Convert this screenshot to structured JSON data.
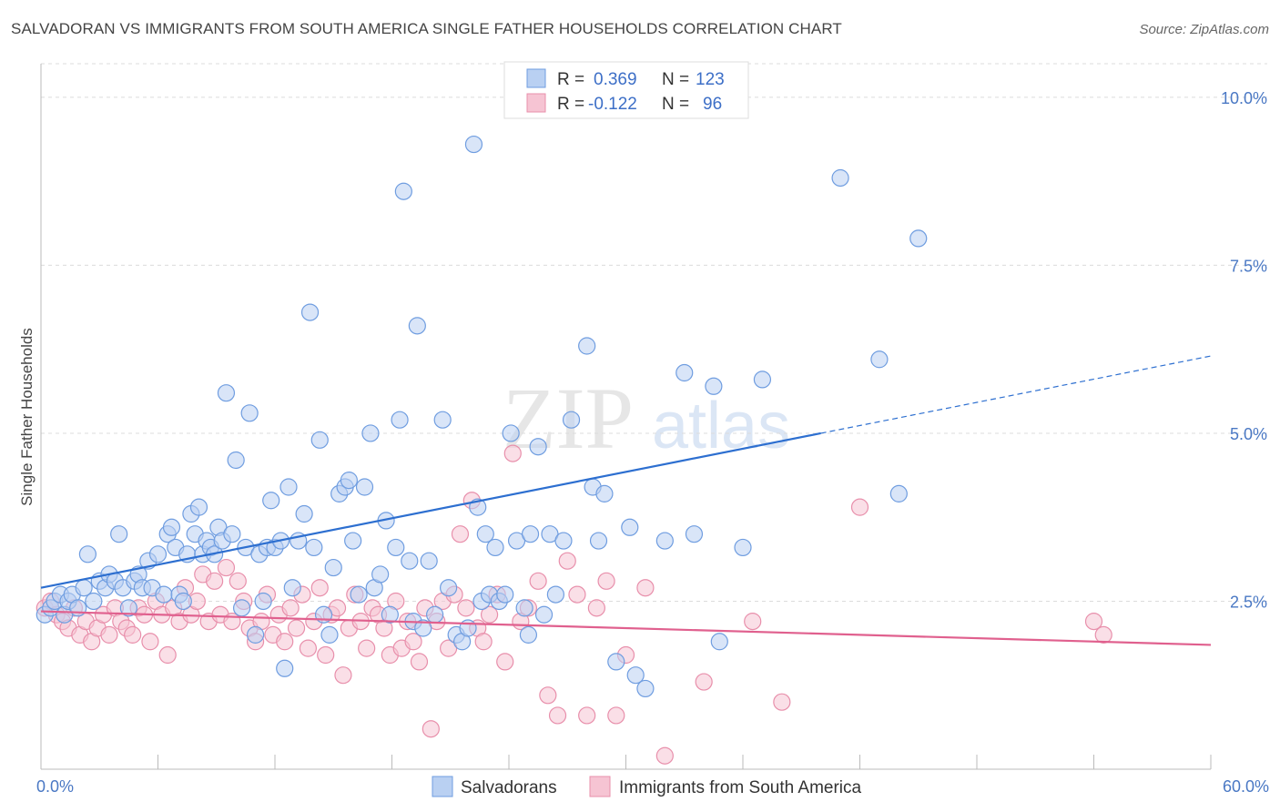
{
  "header": {
    "title": "SALVADORAN VS IMMIGRANTS FROM SOUTH AMERICA SINGLE FATHER HOUSEHOLDS CORRELATION CHART",
    "source": "Source: ZipAtlas.com"
  },
  "watermark": {
    "zip": "ZIP",
    "atlas": "atlas"
  },
  "chart_data": {
    "type": "scatter",
    "title": "SALVADORAN VS IMMIGRANTS FROM SOUTH AMERICA SINGLE FATHER HOUSEHOLDS CORRELATION CHART",
    "xlabel": "",
    "ylabel": "Single Father Households",
    "xlim": [
      0,
      60
    ],
    "ylim": [
      0,
      10.5
    ],
    "x_ticks": [
      {
        "value": 0,
        "label": "0.0%"
      },
      {
        "value": 60,
        "label": "60.0%"
      }
    ],
    "y_ticks": [
      {
        "value": 2.5,
        "label": "2.5%"
      },
      {
        "value": 5.0,
        "label": "5.0%"
      },
      {
        "value": 7.5,
        "label": "7.5%"
      },
      {
        "value": 10.0,
        "label": "10.0%"
      }
    ],
    "legend": {
      "position": "top-center",
      "entries": [
        {
          "r_label": "R =",
          "r_value": "0.369",
          "n_label": "N =",
          "n_value": "123"
        },
        {
          "r_label": "R =",
          "r_value": "-0.122",
          "n_label": "N =",
          "n_value": "96"
        }
      ]
    },
    "series": [
      {
        "name": "Salvadorans",
        "color": "#6f9de0",
        "fill": "#b9d0f2",
        "trend": {
          "x0": 0,
          "y0": 2.7,
          "x1": 40,
          "y1": 5.0,
          "dashed_to_x": 60,
          "dashed_to_y": 6.15,
          "color": "#2d6fd0"
        },
        "points": [
          [
            0.2,
            2.3
          ],
          [
            0.5,
            2.4
          ],
          [
            0.7,
            2.5
          ],
          [
            1.0,
            2.6
          ],
          [
            1.2,
            2.3
          ],
          [
            1.4,
            2.5
          ],
          [
            1.6,
            2.6
          ],
          [
            1.9,
            2.4
          ],
          [
            2.2,
            2.7
          ],
          [
            2.4,
            3.2
          ],
          [
            2.7,
            2.5
          ],
          [
            3.0,
            2.8
          ],
          [
            3.3,
            2.7
          ],
          [
            3.5,
            2.9
          ],
          [
            3.8,
            2.8
          ],
          [
            4.0,
            3.5
          ],
          [
            4.2,
            2.7
          ],
          [
            4.5,
            2.4
          ],
          [
            4.8,
            2.8
          ],
          [
            5.0,
            2.9
          ],
          [
            5.2,
            2.7
          ],
          [
            5.5,
            3.1
          ],
          [
            5.7,
            2.7
          ],
          [
            6.0,
            3.2
          ],
          [
            6.3,
            2.6
          ],
          [
            6.5,
            3.5
          ],
          [
            6.7,
            3.6
          ],
          [
            6.9,
            3.3
          ],
          [
            7.1,
            2.6
          ],
          [
            7.3,
            2.5
          ],
          [
            7.5,
            3.2
          ],
          [
            7.7,
            3.8
          ],
          [
            7.9,
            3.5
          ],
          [
            8.1,
            3.9
          ],
          [
            8.3,
            3.2
          ],
          [
            8.5,
            3.4
          ],
          [
            8.7,
            3.3
          ],
          [
            8.9,
            3.2
          ],
          [
            9.1,
            3.6
          ],
          [
            9.3,
            3.4
          ],
          [
            9.5,
            5.6
          ],
          [
            9.8,
            3.5
          ],
          [
            10.0,
            4.6
          ],
          [
            10.3,
            2.4
          ],
          [
            10.5,
            3.3
          ],
          [
            10.7,
            5.3
          ],
          [
            11.0,
            2.0
          ],
          [
            11.2,
            3.2
          ],
          [
            11.4,
            2.5
          ],
          [
            11.6,
            3.3
          ],
          [
            11.8,
            4.0
          ],
          [
            12.0,
            3.3
          ],
          [
            12.3,
            3.4
          ],
          [
            12.5,
            1.5
          ],
          [
            12.7,
            4.2
          ],
          [
            12.9,
            2.7
          ],
          [
            13.2,
            3.4
          ],
          [
            13.5,
            3.8
          ],
          [
            13.8,
            6.8
          ],
          [
            14.0,
            3.3
          ],
          [
            14.3,
            4.9
          ],
          [
            14.5,
            2.3
          ],
          [
            14.8,
            2.0
          ],
          [
            15.0,
            3.0
          ],
          [
            15.3,
            4.1
          ],
          [
            15.6,
            4.2
          ],
          [
            15.8,
            4.3
          ],
          [
            16.0,
            3.4
          ],
          [
            16.3,
            2.6
          ],
          [
            16.6,
            4.2
          ],
          [
            16.9,
            5.0
          ],
          [
            17.1,
            2.7
          ],
          [
            17.4,
            2.9
          ],
          [
            17.7,
            3.7
          ],
          [
            17.9,
            2.3
          ],
          [
            18.2,
            3.3
          ],
          [
            18.4,
            5.2
          ],
          [
            18.6,
            8.6
          ],
          [
            18.9,
            3.1
          ],
          [
            19.1,
            2.2
          ],
          [
            19.3,
            6.6
          ],
          [
            19.6,
            2.1
          ],
          [
            19.9,
            3.1
          ],
          [
            20.2,
            2.3
          ],
          [
            20.6,
            5.2
          ],
          [
            20.9,
            2.7
          ],
          [
            21.3,
            2.0
          ],
          [
            21.6,
            1.9
          ],
          [
            21.9,
            2.1
          ],
          [
            22.2,
            9.3
          ],
          [
            22.4,
            3.9
          ],
          [
            22.6,
            2.5
          ],
          [
            22.8,
            3.5
          ],
          [
            23.0,
            2.6
          ],
          [
            23.3,
            3.3
          ],
          [
            23.5,
            2.5
          ],
          [
            23.8,
            2.6
          ],
          [
            24.1,
            5.0
          ],
          [
            24.4,
            3.4
          ],
          [
            24.8,
            2.4
          ],
          [
            25.1,
            3.5
          ],
          [
            25.5,
            4.8
          ],
          [
            25.8,
            2.3
          ],
          [
            26.1,
            3.5
          ],
          [
            26.4,
            2.6
          ],
          [
            26.8,
            3.4
          ],
          [
            27.2,
            5.2
          ],
          [
            28.0,
            6.3
          ],
          [
            28.3,
            4.2
          ],
          [
            28.6,
            3.4
          ],
          [
            28.9,
            4.1
          ],
          [
            29.5,
            1.6
          ],
          [
            30.2,
            3.6
          ],
          [
            30.5,
            1.4
          ],
          [
            31.0,
            1.2
          ],
          [
            32.0,
            3.4
          ],
          [
            33.0,
            5.9
          ],
          [
            33.5,
            3.5
          ],
          [
            34.5,
            5.7
          ],
          [
            36.0,
            3.3
          ],
          [
            37.0,
            5.8
          ],
          [
            41.0,
            8.8
          ],
          [
            43.0,
            6.1
          ],
          [
            44.0,
            4.1
          ],
          [
            45.0,
            7.9
          ],
          [
            34.8,
            1.9
          ],
          [
            25.0,
            2.0
          ]
        ]
      },
      {
        "name": "Immigrants from South America",
        "color": "#e88fab",
        "fill": "#f6c4d3",
        "trend": {
          "x0": 0,
          "y0": 2.35,
          "x1": 60,
          "y1": 1.85,
          "color": "#e0608e"
        },
        "points": [
          [
            0.2,
            2.4
          ],
          [
            0.5,
            2.5
          ],
          [
            0.8,
            2.3
          ],
          [
            1.1,
            2.2
          ],
          [
            1.4,
            2.1
          ],
          [
            1.7,
            2.4
          ],
          [
            2.0,
            2.0
          ],
          [
            2.3,
            2.2
          ],
          [
            2.6,
            1.9
          ],
          [
            2.9,
            2.1
          ],
          [
            3.2,
            2.3
          ],
          [
            3.5,
            2.0
          ],
          [
            3.8,
            2.4
          ],
          [
            4.1,
            2.2
          ],
          [
            4.4,
            2.1
          ],
          [
            4.7,
            2.0
          ],
          [
            5.0,
            2.4
          ],
          [
            5.3,
            2.3
          ],
          [
            5.6,
            1.9
          ],
          [
            5.9,
            2.5
          ],
          [
            6.2,
            2.3
          ],
          [
            6.5,
            1.7
          ],
          [
            6.8,
            2.4
          ],
          [
            7.1,
            2.2
          ],
          [
            7.4,
            2.7
          ],
          [
            7.7,
            2.3
          ],
          [
            8.0,
            2.5
          ],
          [
            8.3,
            2.9
          ],
          [
            8.6,
            2.2
          ],
          [
            8.9,
            2.8
          ],
          [
            9.2,
            2.3
          ],
          [
            9.5,
            3.0
          ],
          [
            9.8,
            2.2
          ],
          [
            10.1,
            2.8
          ],
          [
            10.4,
            2.5
          ],
          [
            10.7,
            2.1
          ],
          [
            11.0,
            1.9
          ],
          [
            11.3,
            2.2
          ],
          [
            11.6,
            2.6
          ],
          [
            11.9,
            2.0
          ],
          [
            12.2,
            2.3
          ],
          [
            12.5,
            1.9
          ],
          [
            12.8,
            2.4
          ],
          [
            13.1,
            2.1
          ],
          [
            13.4,
            2.6
          ],
          [
            13.7,
            1.8
          ],
          [
            14.0,
            2.2
          ],
          [
            14.3,
            2.7
          ],
          [
            14.6,
            1.7
          ],
          [
            14.9,
            2.3
          ],
          [
            15.2,
            2.4
          ],
          [
            15.5,
            1.4
          ],
          [
            15.8,
            2.1
          ],
          [
            16.1,
            2.6
          ],
          [
            16.4,
            2.2
          ],
          [
            16.7,
            1.8
          ],
          [
            17.0,
            2.4
          ],
          [
            17.3,
            2.3
          ],
          [
            17.6,
            2.1
          ],
          [
            17.9,
            1.7
          ],
          [
            18.2,
            2.5
          ],
          [
            18.5,
            1.8
          ],
          [
            18.8,
            2.2
          ],
          [
            19.1,
            1.9
          ],
          [
            19.4,
            1.6
          ],
          [
            19.7,
            2.4
          ],
          [
            20.0,
            0.6
          ],
          [
            20.3,
            2.2
          ],
          [
            20.6,
            2.5
          ],
          [
            20.9,
            1.8
          ],
          [
            21.2,
            2.6
          ],
          [
            21.5,
            3.5
          ],
          [
            21.8,
            2.4
          ],
          [
            22.1,
            4.0
          ],
          [
            22.4,
            2.1
          ],
          [
            22.7,
            1.9
          ],
          [
            23.0,
            2.3
          ],
          [
            23.4,
            2.6
          ],
          [
            23.8,
            1.6
          ],
          [
            24.2,
            4.7
          ],
          [
            24.6,
            2.2
          ],
          [
            25.0,
            2.4
          ],
          [
            25.5,
            2.8
          ],
          [
            26.0,
            1.1
          ],
          [
            26.5,
            0.8
          ],
          [
            27.0,
            3.1
          ],
          [
            27.5,
            2.6
          ],
          [
            28.0,
            0.8
          ],
          [
            28.5,
            2.4
          ],
          [
            29.0,
            2.8
          ],
          [
            30.0,
            1.7
          ],
          [
            31.0,
            2.7
          ],
          [
            32.0,
            0.2
          ],
          [
            34.0,
            1.3
          ],
          [
            38.0,
            1.0
          ],
          [
            42.0,
            3.9
          ],
          [
            54.0,
            2.2
          ],
          [
            54.5,
            2.0
          ],
          [
            36.5,
            2.2
          ],
          [
            29.5,
            0.8
          ]
        ]
      }
    ]
  }
}
